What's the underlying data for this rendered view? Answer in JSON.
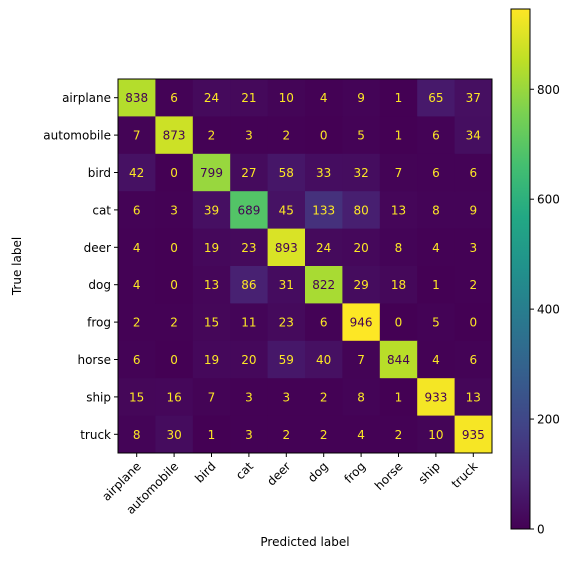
{
  "chart_data": {
    "type": "heatmap",
    "title": "",
    "xlabel": "Predicted label",
    "ylabel": "True label",
    "x_labels": [
      "airplane",
      "automobile",
      "bird",
      "cat",
      "deer",
      "dog",
      "frog",
      "horse",
      "ship",
      "truck"
    ],
    "y_labels": [
      "airplane",
      "automobile",
      "bird",
      "cat",
      "deer",
      "dog",
      "frog",
      "horse",
      "ship",
      "truck"
    ],
    "matrix": [
      [
        838,
        6,
        24,
        21,
        10,
        4,
        9,
        1,
        65,
        37
      ],
      [
        7,
        873,
        2,
        3,
        2,
        0,
        5,
        1,
        6,
        34
      ],
      [
        42,
        0,
        799,
        27,
        58,
        33,
        32,
        7,
        6,
        6
      ],
      [
        6,
        3,
        39,
        689,
        45,
        133,
        80,
        13,
        8,
        9
      ],
      [
        4,
        0,
        19,
        23,
        893,
        24,
        20,
        8,
        4,
        3
      ],
      [
        4,
        0,
        13,
        86,
        31,
        822,
        29,
        18,
        1,
        2
      ],
      [
        2,
        2,
        15,
        11,
        23,
        6,
        946,
        0,
        5,
        0
      ],
      [
        6,
        0,
        19,
        20,
        59,
        40,
        7,
        844,
        4,
        6
      ],
      [
        15,
        16,
        7,
        3,
        3,
        2,
        8,
        1,
        933,
        13
      ],
      [
        8,
        30,
        1,
        3,
        2,
        2,
        4,
        2,
        10,
        935
      ]
    ],
    "colormap": "viridis",
    "vmin": 0,
    "vmax": 946,
    "colorbar_ticks": [
      "0",
      "200",
      "400",
      "600",
      "800"
    ],
    "colorbar_tick_values": [
      0,
      200,
      400,
      600,
      800
    ],
    "text_color_low": "#fde725",
    "text_color_high": "#440154",
    "grid": false
  }
}
